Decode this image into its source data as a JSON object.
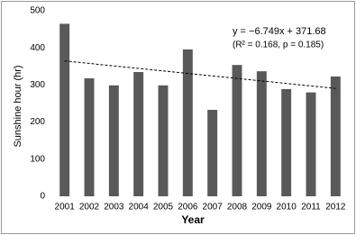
{
  "chart_data": {
    "type": "bar",
    "categories": [
      "2001",
      "2002",
      "2003",
      "2004",
      "2005",
      "2006",
      "2007",
      "2008",
      "2009",
      "2010",
      "2011",
      "2012"
    ],
    "values": [
      465,
      318,
      299,
      335,
      299,
      396,
      233,
      354,
      337,
      289,
      280,
      323
    ],
    "color": "#595959",
    "x_label": "Year",
    "y_label": "Sunshine hour (hr)",
    "ylim": [
      0,
      500
    ],
    "yticks": [
      0,
      100,
      200,
      300,
      400,
      500
    ],
    "grid": false,
    "trend": {
      "slope": -6.749,
      "intercept": 371.68,
      "color": "#000000"
    },
    "annotations": [
      "y = −6.749x + 371.68",
      "(R² = 0.168, p = 0.185)"
    ]
  }
}
